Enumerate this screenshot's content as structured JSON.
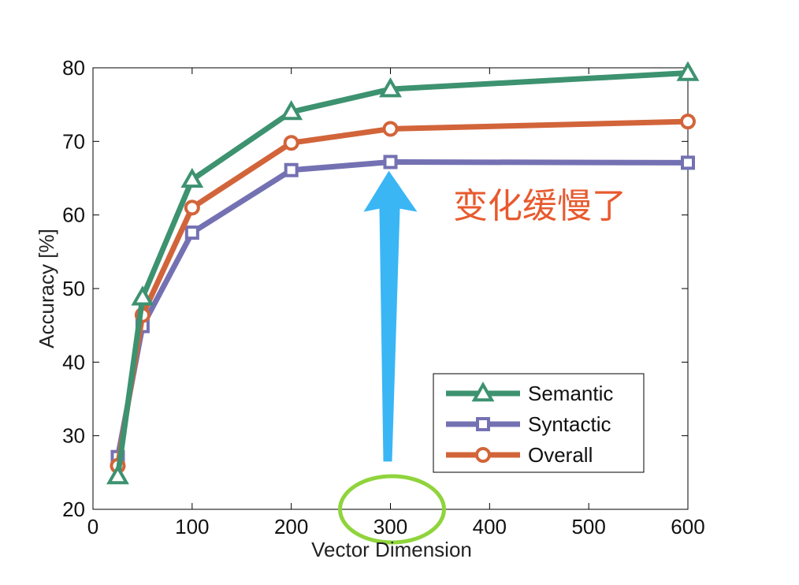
{
  "chart_data": {
    "type": "line",
    "xlabel": "Vector Dimension",
    "ylabel": "Accuracy [%]",
    "xlim": [
      0,
      600
    ],
    "ylim": [
      20,
      80
    ],
    "xticks": [
      0,
      100,
      200,
      300,
      400,
      500,
      600
    ],
    "yticks": [
      20,
      30,
      40,
      50,
      60,
      70,
      80
    ],
    "grid": false,
    "legend_position": "bottom-right",
    "x": [
      25,
      50,
      100,
      200,
      300,
      600
    ],
    "series": [
      {
        "name": "Semantic",
        "marker": "triangle",
        "color": "#3d9270",
        "values": [
          24.5,
          48.8,
          64.8,
          74.0,
          77.1,
          79.3
        ]
      },
      {
        "name": "Syntactic",
        "marker": "square",
        "color": "#7471b3",
        "values": [
          27.1,
          44.9,
          57.6,
          66.1,
          67.2,
          67.1
        ]
      },
      {
        "name": "Overall",
        "marker": "circle",
        "color": "#d2643a",
        "values": [
          25.9,
          46.4,
          61.0,
          69.8,
          71.7,
          72.7
        ]
      }
    ],
    "annotations": [
      {
        "type": "text",
        "text": "变化缓慢了",
        "color": "#e85a2e"
      },
      {
        "type": "arrow",
        "color": "#3ab6f5",
        "x": 300,
        "y_from": 26.5,
        "y_to": 66
      },
      {
        "type": "ellipse",
        "color": "#8fd43c",
        "x": 300,
        "y": 20
      }
    ]
  }
}
